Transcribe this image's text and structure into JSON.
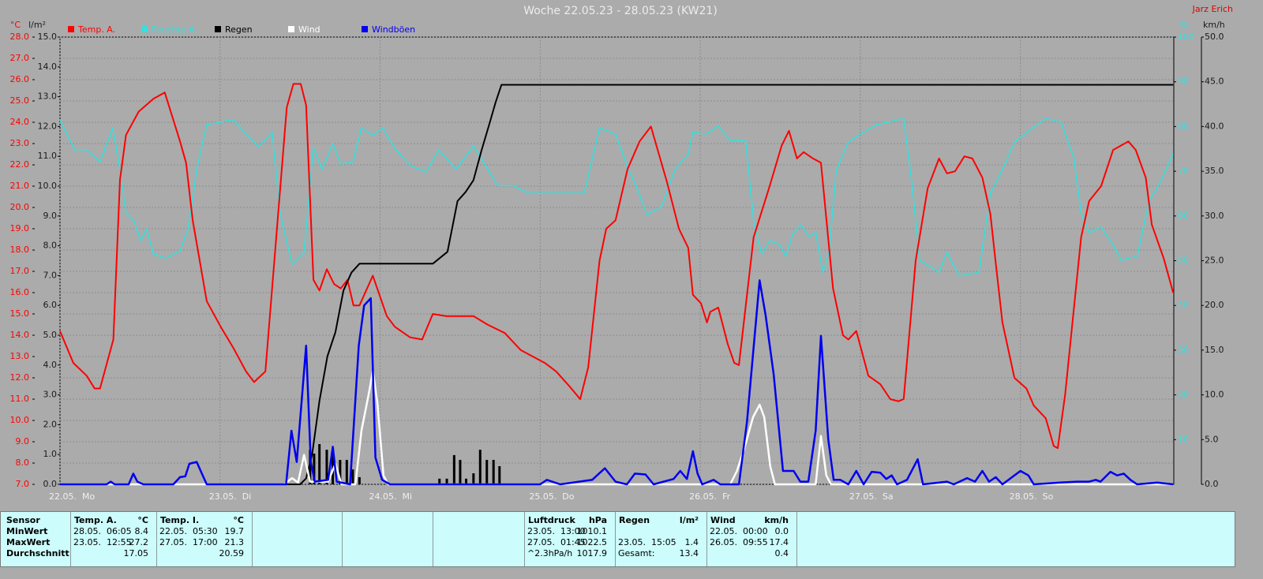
{
  "chart_data": {
    "type": "line",
    "title": "Woche 22.05.23 - 28.05.23 (KW21)",
    "annotation": "Jarz Erich",
    "grid": true,
    "xlim": [
      0,
      167
    ],
    "xticks": [
      {
        "value": 0,
        "label": "22.05.  Mo"
      },
      {
        "value": 24,
        "label": "23.05.  Di"
      },
      {
        "value": 48,
        "label": "24.05.  Mi"
      },
      {
        "value": 72,
        "label": "25.05.  Do"
      },
      {
        "value": 96,
        "label": "26.05.  Fr"
      },
      {
        "value": 120,
        "label": "27.05.  Sa"
      },
      {
        "value": 144,
        "label": "28.05.  So"
      }
    ],
    "y_unit": "°C",
    "ylim": [
      7,
      28
    ],
    "yticks": [
      {
        "value": 7,
        "label": "7.0"
      },
      {
        "value": 8,
        "label": "8.0"
      },
      {
        "value": 9,
        "label": "9.0"
      },
      {
        "value": 10,
        "label": "10.0"
      },
      {
        "value": 11,
        "label": "11.0"
      },
      {
        "value": 12,
        "label": "12.0"
      },
      {
        "value": 13,
        "label": "13.0"
      },
      {
        "value": 14,
        "label": "14.0"
      },
      {
        "value": 15,
        "label": "15.0"
      },
      {
        "value": 16,
        "label": "16.0"
      },
      {
        "value": 17,
        "label": "17.0"
      },
      {
        "value": 18,
        "label": "18.0"
      },
      {
        "value": 19,
        "label": "19.0"
      },
      {
        "value": 20,
        "label": "20.0"
      },
      {
        "value": 21,
        "label": "21.0"
      },
      {
        "value": 22,
        "label": "22.0"
      },
      {
        "value": 23,
        "label": "23.0"
      },
      {
        "value": 24,
        "label": "24.0"
      },
      {
        "value": 25,
        "label": "25.0"
      },
      {
        "value": 26,
        "label": "26.0"
      },
      {
        "value": 27,
        "label": "27.0"
      },
      {
        "value": 28,
        "label": "28.0"
      }
    ],
    "y2_unit": "l/m²",
    "y2lim": [
      0,
      15
    ],
    "y2ticks": [
      {
        "value": 0,
        "label": "0.0"
      },
      {
        "value": 1,
        "label": "1.0"
      },
      {
        "value": 2,
        "label": "2.0"
      },
      {
        "value": 3,
        "label": "3.0"
      },
      {
        "value": 4,
        "label": "4.0"
      },
      {
        "value": 5,
        "label": "5.0"
      },
      {
        "value": 6,
        "label": "6.0"
      },
      {
        "value": 7,
        "label": "7.0"
      },
      {
        "value": 8,
        "label": "8.0"
      },
      {
        "value": 9,
        "label": "9.0"
      },
      {
        "value": 10,
        "label": "10.0"
      },
      {
        "value": 11,
        "label": "11.0"
      },
      {
        "value": 12,
        "label": "12.0"
      },
      {
        "value": 13,
        "label": "13.0"
      },
      {
        "value": 14,
        "label": "14.0"
      },
      {
        "value": 15,
        "label": "15.0"
      }
    ],
    "y3_unit": "%",
    "y3lim": [
      0,
      100
    ],
    "y3ticks": [
      10,
      20,
      30,
      40,
      50,
      60,
      70,
      80,
      90,
      100
    ],
    "y4_unit": "km/h",
    "y4lim": [
      0,
      50
    ],
    "y4ticks": [
      {
        "value": 0,
        "label": "0.0"
      },
      {
        "value": 5,
        "label": "5.0"
      },
      {
        "value": 10,
        "label": "10.0"
      },
      {
        "value": 15,
        "label": "15.0"
      },
      {
        "value": 20,
        "label": "20.0"
      },
      {
        "value": 25,
        "label": "25.0"
      },
      {
        "value": 30,
        "label": "30.0"
      },
      {
        "value": 35,
        "label": "35.0"
      },
      {
        "value": 40,
        "label": "40.0"
      },
      {
        "value": 45,
        "label": "45.0"
      },
      {
        "value": 50,
        "label": "50.0"
      }
    ],
    "series": [
      {
        "name": "Temp. A.",
        "color": "#ff0000",
        "axis": "y",
        "x": [
          0,
          2,
          4,
          5.2,
          6,
          8,
          9,
          9.9,
          11.8,
          14,
          15.7,
          18,
          18.9,
          19.9,
          22,
          24.1,
          26,
          27.9,
          29.1,
          30.8,
          34,
          35,
          36.1,
          36.9,
          38,
          38.9,
          40,
          41.1,
          42.1,
          43.1,
          44,
          44.9,
          46.9,
          49,
          50.2,
          52.5,
          54.3,
          55.9,
          57.9,
          62,
          64.1,
          66.7,
          69.1,
          72.7,
          74.4,
          76.4,
          78,
          79.2,
          80.9,
          81.9,
          83.3,
          85.1,
          86.9,
          88.6,
          91,
          92.8,
          94.2,
          94.9,
          96.1,
          97,
          97.5,
          98.7,
          100.1,
          101.1,
          101.8,
          104,
          106.4,
          108.2,
          109.3,
          110.5,
          111.5,
          112.9,
          114.1,
          115.9,
          117.4,
          118.2,
          119.4,
          121.2,
          123,
          124.5,
          125.7,
          126.5,
          128.3,
          130.1,
          131.8,
          133,
          134.2,
          135.6,
          136.8,
          138.3,
          139.5,
          140.4,
          141.3,
          143.1,
          144.9,
          146,
          147.8,
          149,
          149.6,
          150.7,
          153.1,
          154.3,
          156.1,
          157.9,
          160.2,
          161.3,
          162.8,
          163.7,
          165.5,
          166.9
        ],
        "values": [
          14.2,
          12.7,
          12.1,
          11.5,
          11.5,
          13.8,
          21.3,
          23.4,
          24.5,
          25.1,
          25.4,
          23.1,
          22.1,
          19.4,
          15.6,
          14.4,
          13.4,
          12.3,
          11.8,
          12.3,
          24.7,
          25.8,
          25.8,
          24.8,
          16.6,
          16.1,
          17.1,
          16.4,
          16.2,
          16.6,
          15.4,
          15.4,
          16.8,
          14.9,
          14.4,
          13.9,
          13.8,
          15.0,
          14.9,
          14.9,
          14.5,
          14.1,
          13.3,
          12.7,
          12.3,
          11.6,
          11.0,
          12.5,
          17.5,
          19.0,
          19.4,
          21.8,
          23.1,
          23.8,
          21.2,
          19.0,
          18.1,
          15.9,
          15.5,
          14.6,
          15.1,
          15.3,
          13.6,
          12.7,
          12.6,
          18.6,
          21.0,
          22.9,
          23.6,
          22.3,
          22.6,
          22.3,
          22.1,
          16.2,
          14.0,
          13.8,
          14.2,
          12.1,
          11.7,
          11.0,
          10.9,
          11.0,
          17.5,
          20.9,
          22.3,
          21.6,
          21.7,
          22.4,
          22.3,
          21.4,
          19.7,
          17.1,
          14.6,
          12.0,
          11.5,
          10.7,
          10.1,
          8.8,
          8.7,
          11.2,
          18.6,
          20.3,
          21.0,
          22.7,
          23.1,
          22.7,
          21.4,
          19.2,
          17.6,
          16.0
        ]
      },
      {
        "name": "Feuchte A.",
        "color": "#33e0e0",
        "axis": "y3",
        "x": [
          0,
          2.2,
          4,
          6,
          7.9,
          8.8,
          9.9,
          11.1,
          12.1,
          13,
          14,
          15.9,
          18,
          19.2,
          20.6,
          22,
          24.1,
          26,
          27.9,
          29.8,
          31.8,
          33,
          34.8,
          36.6,
          38,
          39.3,
          40.9,
          42.1,
          43.9,
          45.2,
          46.9,
          48.4,
          50.2,
          52.5,
          54.9,
          56.8,
          59.4,
          62,
          63.8,
          65.6,
          67.9,
          70.3,
          73.8,
          78.6,
          80.9,
          83.3,
          85.1,
          86.6,
          88,
          90.2,
          92.2,
          94.2,
          94.9,
          96.9,
          98.7,
          100.5,
          102.8,
          104,
          105.2,
          106.4,
          107.9,
          108.8,
          109.9,
          111.1,
          112.3,
          113.3,
          114.4,
          115.3,
          116.4,
          118.2,
          120,
          122.4,
          126.5,
          127.7,
          128.9,
          131.8,
          133,
          134.8,
          137.8,
          139.5,
          141.3,
          143.1,
          145.4,
          147.8,
          150.1,
          152,
          153.1,
          154.3,
          156.1,
          157.9,
          159.1,
          161.5,
          163.3,
          165,
          166.9
        ],
        "values": [
          81.5,
          74.8,
          74.8,
          72.1,
          79.7,
          72.1,
          60.7,
          58.9,
          54.5,
          57.1,
          51.5,
          50.6,
          52.2,
          57.1,
          71.3,
          80.4,
          81,
          81.5,
          78.3,
          75.5,
          78.7,
          60.7,
          49.2,
          51.9,
          75.3,
          70.4,
          76.2,
          71.6,
          72.1,
          79.7,
          78,
          79.7,
          75.1,
          71.3,
          69.8,
          74.8,
          70.4,
          75.7,
          71.3,
          66.8,
          66.8,
          65.1,
          65.1,
          65.1,
          79.7,
          78.3,
          70.9,
          66,
          60.3,
          62.1,
          70.4,
          73.9,
          78.7,
          78.3,
          80.1,
          76.9,
          76.9,
          58.9,
          51.5,
          54.5,
          53.6,
          51,
          56.1,
          58,
          55.4,
          56.3,
          47.4,
          51.9,
          70.4,
          76.5,
          78.3,
          80.4,
          81.8,
          67.7,
          50.1,
          47.4,
          51.9,
          46.6,
          47.4,
          65.1,
          70.4,
          76.5,
          79.2,
          81.8,
          81,
          73,
          60.7,
          56.3,
          57.5,
          53.6,
          50.1,
          51,
          63.3,
          67.7,
          73.9
        ]
      },
      {
        "name": "Regen",
        "color": "#000000",
        "axis": "y2",
        "x": [
          0,
          36,
          36.9,
          37.8,
          38.9,
          40.1,
          41.3,
          42.5,
          43.7,
          44.9,
          46.6,
          55.9,
          58.1,
          59.6,
          60.8,
          62,
          63.2,
          64.4,
          65.3,
          66.2,
          166.9
        ],
        "values": [
          0,
          0,
          0.2,
          1,
          2.8,
          4.3,
          5.1,
          6.5,
          7.1,
          7.4,
          7.4,
          7.4,
          7.8,
          9.5,
          9.8,
          10.2,
          11.2,
          12.1,
          12.8,
          13.4,
          13.4
        ],
        "bar_x": [
          37.5,
          38.1,
          38.9,
          40,
          40.9,
          42,
          43,
          43.9,
          44.9,
          56.9,
          58,
          59.1,
          60,
          60.9,
          62,
          63,
          64,
          65,
          65.9
        ],
        "bar_values": [
          1.16,
          1.03,
          1.35,
          1.16,
          1.22,
          0.82,
          0.82,
          0.5,
          0.24,
          0.19,
          0.19,
          0.98,
          0.82,
          0.19,
          0.37,
          1.16,
          0.82,
          0.82,
          0.61
        ]
      },
      {
        "name": "Wind",
        "color": "#ffffff",
        "axis": "y4",
        "x": [
          0,
          33.6,
          34.8,
          35.7,
          36.6,
          37.5,
          40.2,
          41.3,
          42.2,
          44.3,
          45.2,
          46.4,
          46.9,
          47.6,
          48.5,
          49.2,
          100.5,
          101.5,
          102.6,
          103.9,
          104.9,
          105.6,
          106.5,
          107.2,
          113.3,
          114.1,
          114.9,
          115.6,
          166.9
        ],
        "values": [
          0,
          0,
          0.7,
          0.2,
          3.3,
          0.3,
          0.3,
          2.3,
          0,
          0,
          6,
          10.5,
          12.7,
          9,
          1,
          0,
          0,
          1.5,
          4,
          7.5,
          8.9,
          7.5,
          2,
          0,
          0,
          5.4,
          1,
          0,
          0
        ]
      },
      {
        "name": "Windböen",
        "color": "#0000f0",
        "axis": "y4",
        "x": [
          0,
          7,
          7.6,
          8.2,
          10.3,
          11,
          11.6,
          12.5,
          17,
          18,
          18.8,
          19.4,
          20.5,
          21.4,
          22,
          33.9,
          34.7,
          35.5,
          36.9,
          37.6,
          38.2,
          40.2,
          40.9,
          41.5,
          43.5,
          44.8,
          45.6,
          46.6,
          47.3,
          48.3,
          49.5,
          72,
          73,
          75,
          79.8,
          81.7,
          83.3,
          85,
          86.2,
          87.8,
          89,
          92,
          93,
          94,
          94.9,
          95.6,
          96.3,
          98,
          99,
          101.8,
          103,
          104.9,
          105.8,
          107,
          108.4,
          110,
          111,
          112.2,
          113.3,
          114.1,
          115.2,
          116,
          117,
          118.2,
          119.4,
          120.5,
          121.7,
          123,
          123.9,
          124.7,
          125.5,
          127,
          128.6,
          129.4,
          133,
          134,
          136,
          137.2,
          138.3,
          139.3,
          140.3,
          141.3,
          144,
          145.2,
          146,
          149.9,
          152.5,
          154.3,
          155.3,
          156,
          157.5,
          158.5,
          159.5,
          160.5,
          161.5,
          164.5,
          166.9
        ],
        "values": [
          0,
          0,
          0.3,
          0,
          0,
          1.2,
          0.3,
          0,
          0,
          0.8,
          0.9,
          2.3,
          2.5,
          1,
          0,
          0,
          6,
          2.5,
          15.5,
          2.5,
          0.3,
          0.5,
          4.2,
          0.3,
          0,
          15.5,
          20,
          20.8,
          3,
          0.5,
          0,
          0,
          0.5,
          0,
          0.5,
          1.8,
          0.3,
          0,
          1.2,
          1.1,
          0,
          0.6,
          1.5,
          0.6,
          3.7,
          1.2,
          0,
          0.5,
          0,
          0,
          7,
          22.8,
          18.9,
          12.3,
          1.5,
          1.5,
          0.3,
          0.3,
          6,
          16.6,
          5,
          0.5,
          0.5,
          0,
          1.5,
          0,
          1.4,
          1.3,
          0.6,
          1,
          0,
          0.5,
          2.8,
          0,
          0.3,
          0,
          0.7,
          0.3,
          1.5,
          0.3,
          0.8,
          0,
          1.5,
          1,
          0,
          0.2,
          0.3,
          0.3,
          0.5,
          0.3,
          1.4,
          1,
          1.2,
          0.5,
          0,
          0.2,
          0
        ]
      }
    ]
  },
  "table": {
    "row_labels": [
      "Sensor",
      "MinWert",
      "MaxWert",
      "Durchschnitt"
    ],
    "groups": [
      {
        "name": "Temp. A.",
        "unit": "°C",
        "rows": [
          [
            "28.05.  06:05",
            "8.4"
          ],
          [
            "23.05.  12:55",
            "27.2"
          ],
          [
            null,
            "17.05"
          ]
        ]
      },
      {
        "name": "Temp. I.",
        "unit": "°C",
        "rows": [
          [
            "22.05.  05:30",
            "19.7"
          ],
          [
            "27.05.  17:00",
            "21.3"
          ],
          [
            null,
            "20.59"
          ]
        ]
      },
      {
        "name": "Luftdruck",
        "unit": "hPa",
        "rows": [
          [
            "23.05.  13:00",
            "1010.1"
          ],
          [
            "27.05.  01:45",
            "1022.5"
          ],
          [
            "^2.3hPa/h",
            "1017.9"
          ]
        ]
      },
      {
        "name": "Regen",
        "unit": "l/m²",
        "rows": [
          [
            null,
            null
          ],
          [
            "23.05.  15:05",
            "1.4"
          ],
          [
            "Gesamt:",
            "13.4"
          ]
        ]
      },
      {
        "name": "Wind",
        "unit": "km/h",
        "rows": [
          [
            "22.05.  00:00",
            "0.0"
          ],
          [
            "26.05.  09:55",
            "17.4"
          ],
          [
            null,
            "0.4"
          ]
        ]
      }
    ]
  }
}
